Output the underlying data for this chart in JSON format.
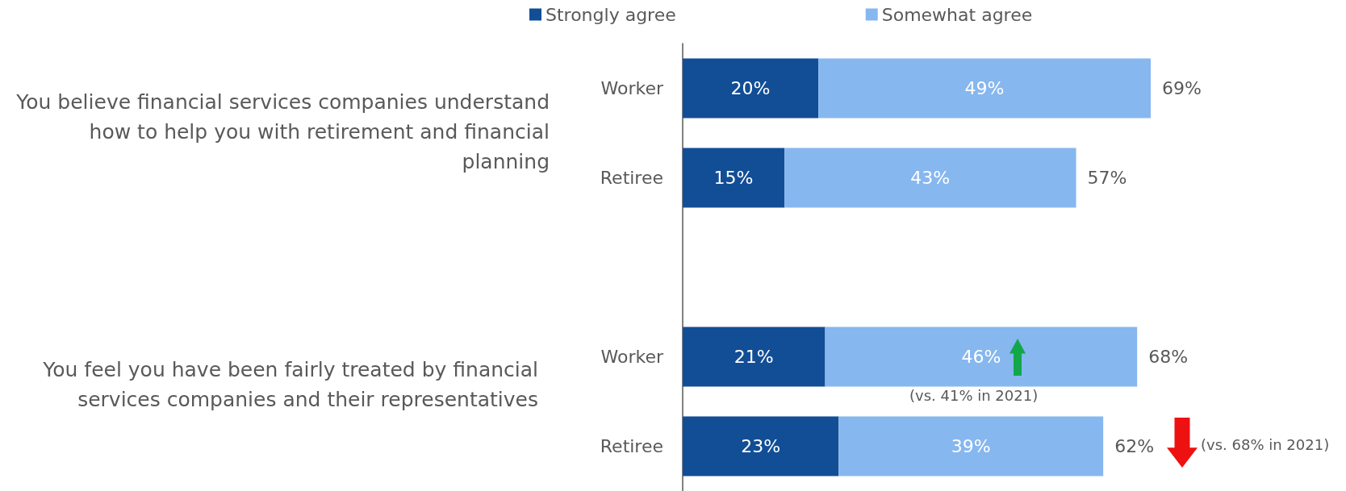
{
  "chart_data": {
    "type": "bar",
    "orientation": "horizontal",
    "stacked": true,
    "categories": [
      "Worker",
      "Retiree",
      null,
      "Worker",
      "Retiree"
    ],
    "series": [
      {
        "name": "Strongly agree",
        "color": "#124e96",
        "values": [
          20,
          15,
          null,
          21,
          23
        ],
        "value_labels": [
          "20%",
          "15%",
          null,
          "21%",
          "23%"
        ]
      },
      {
        "name": "Somewhat agree",
        "color": "#86b7ef",
        "values": [
          49,
          43,
          null,
          46,
          39
        ],
        "value_labels": [
          "49%",
          "43%",
          null,
          "46%",
          "39%"
        ]
      }
    ],
    "totals": [
      "69%",
      "57%",
      null,
      "68%",
      "62%"
    ],
    "legend": "top",
    "annotations": [
      "You believe financial services companies understand how to help you with retirement and financial planning",
      "You feel you have been fairly treated by financial services companies and their representatives",
      "(vs. 41% in 2021)",
      "(vs. 68% in 2021)"
    ]
  }
}
